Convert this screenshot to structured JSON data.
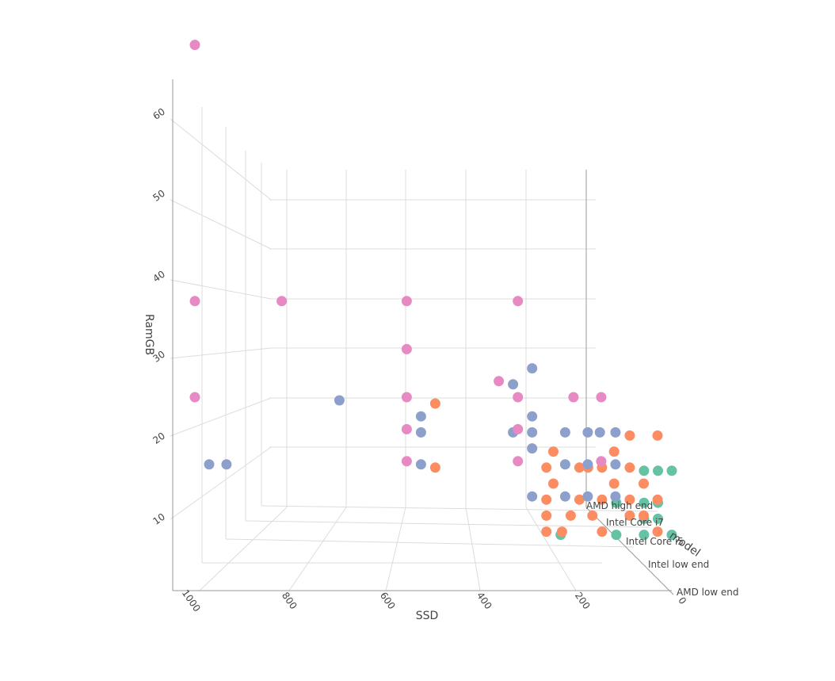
{
  "chart_data": {
    "type": "scatter3d",
    "xlabel": "SSD",
    "ylabel": "RamGB",
    "zlabel": "model",
    "x_ticks": [
      0,
      200,
      400,
      600,
      800,
      1000
    ],
    "y_ticks": [
      10,
      20,
      30,
      40,
      50,
      60
    ],
    "categories": [
      "AMD low end",
      "Intel low end",
      "Intel Core i5",
      "Intel Core i7",
      "AMD high end"
    ],
    "colors": {
      "AMD low end": "#66c2a5",
      "Intel low end": "#fc8d62",
      "Intel Core i5": "#8da0cb",
      "Intel Core i7": "#e78ac3",
      "AMD high end": "#a6d854"
    },
    "grid": true,
    "legend": "none",
    "series": [
      {
        "name": "AMD low end",
        "color": "#66c2a5",
        "points": [
          {
            "x": 128,
            "y": 4
          },
          {
            "x": 256,
            "y": 4
          },
          {
            "x": 64,
            "y": 4
          },
          {
            "x": 0,
            "y": 4
          },
          {
            "x": 64,
            "y": 8
          },
          {
            "x": 32,
            "y": 8
          },
          {
            "x": 128,
            "y": 8
          },
          {
            "x": 64,
            "y": 12
          },
          {
            "x": 32,
            "y": 12
          },
          {
            "x": 0,
            "y": 12
          },
          {
            "x": 64,
            "y": 6
          },
          {
            "x": 32,
            "y": 6
          }
        ]
      },
      {
        "name": "Intel low end",
        "color": "#fc8d62",
        "points": [
          {
            "x": 512,
            "y": 20
          },
          {
            "x": 512,
            "y": 12
          },
          {
            "x": 256,
            "y": 12
          },
          {
            "x": 256,
            "y": 8
          },
          {
            "x": 256,
            "y": 6
          },
          {
            "x": 256,
            "y": 4
          },
          {
            "x": 128,
            "y": 12
          },
          {
            "x": 128,
            "y": 8
          },
          {
            "x": 128,
            "y": 4
          },
          {
            "x": 64,
            "y": 16
          },
          {
            "x": 64,
            "y": 12
          },
          {
            "x": 64,
            "y": 8
          },
          {
            "x": 64,
            "y": 6
          },
          {
            "x": 0,
            "y": 16
          },
          {
            "x": 0,
            "y": 8
          },
          {
            "x": 0,
            "y": 4
          },
          {
            "x": 180,
            "y": 8
          },
          {
            "x": 180,
            "y": 12
          },
          {
            "x": 100,
            "y": 14
          },
          {
            "x": 100,
            "y": 10
          },
          {
            "x": 32,
            "y": 10
          },
          {
            "x": 32,
            "y": 6
          },
          {
            "x": 200,
            "y": 6
          },
          {
            "x": 220,
            "y": 4
          },
          {
            "x": 150,
            "y": 6
          },
          {
            "x": 160,
            "y": 12
          },
          {
            "x": 240,
            "y": 10
          },
          {
            "x": 240,
            "y": 14
          }
        ]
      },
      {
        "name": "Intel Core i5",
        "color": "#8da0cb",
        "points": [
          {
            "x": 1000,
            "y": 12
          },
          {
            "x": 960,
            "y": 12
          },
          {
            "x": 700,
            "y": 20
          },
          {
            "x": 512,
            "y": 18
          },
          {
            "x": 512,
            "y": 16
          },
          {
            "x": 512,
            "y": 12
          },
          {
            "x": 256,
            "y": 24
          },
          {
            "x": 256,
            "y": 18
          },
          {
            "x": 256,
            "y": 16
          },
          {
            "x": 256,
            "y": 14
          },
          {
            "x": 256,
            "y": 8
          },
          {
            "x": 300,
            "y": 22
          },
          {
            "x": 300,
            "y": 16
          },
          {
            "x": 128,
            "y": 16
          },
          {
            "x": 128,
            "y": 12
          },
          {
            "x": 128,
            "y": 8
          },
          {
            "x": 64,
            "y": 16
          },
          {
            "x": 64,
            "y": 12
          },
          {
            "x": 64,
            "y": 8
          },
          {
            "x": 180,
            "y": 16
          },
          {
            "x": 180,
            "y": 12
          },
          {
            "x": 180,
            "y": 8
          },
          {
            "x": 100,
            "y": 16
          }
        ]
      },
      {
        "name": "Intel Core i7",
        "color": "#e78ac3",
        "points": [
          {
            "x": 1000,
            "y": 64
          },
          {
            "x": 1000,
            "y": 32
          },
          {
            "x": 1000,
            "y": 20
          },
          {
            "x": 800,
            "y": 32
          },
          {
            "x": 512,
            "y": 32
          },
          {
            "x": 512,
            "y": 26
          },
          {
            "x": 512,
            "y": 20
          },
          {
            "x": 512,
            "y": 16
          },
          {
            "x": 512,
            "y": 12
          },
          {
            "x": 256,
            "y": 32
          },
          {
            "x": 256,
            "y": 20
          },
          {
            "x": 256,
            "y": 16
          },
          {
            "x": 256,
            "y": 12
          },
          {
            "x": 300,
            "y": 22
          },
          {
            "x": 128,
            "y": 20
          },
          {
            "x": 64,
            "y": 20
          },
          {
            "x": 64,
            "y": 12
          }
        ]
      }
    ]
  }
}
